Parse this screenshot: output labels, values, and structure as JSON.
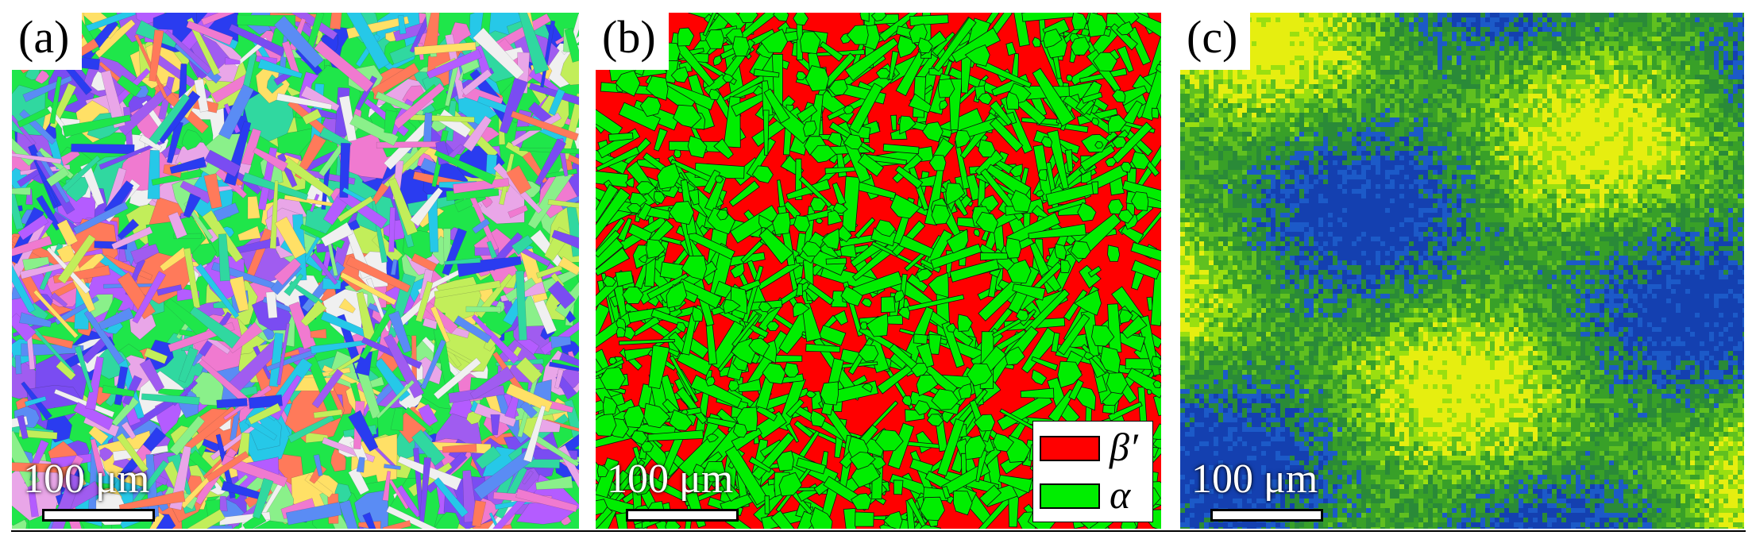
{
  "panels": {
    "a": {
      "letter": "(a)",
      "scalebar": "100 μm",
      "map_type": "orientation-map",
      "palette": [
        "#1fe64a",
        "#2a3cf0",
        "#7a4cf2",
        "#a05cf0",
        "#26c8e8",
        "#5a8cf4",
        "#e9a6e8",
        "#f07ad0",
        "#f0f0f0",
        "#30d8a0",
        "#ff7a5a",
        "#ffe066",
        "#c2ee5a",
        "#8af08a",
        "#b45cff"
      ]
    },
    "b": {
      "letter": "(b)",
      "scalebar": "100 μm",
      "map_type": "phase-map",
      "colors": {
        "beta_prime": "#ff0000",
        "alpha": "#00ee00"
      },
      "legend": [
        {
          "label": "β′",
          "color": "#ff0000"
        },
        {
          "label": "α",
          "color": "#00ee00"
        }
      ]
    },
    "c": {
      "letter": "(c)",
      "scalebar": "100 μm",
      "map_type": "misorientation-map",
      "palette": [
        "#1f7a2e",
        "#2a8a38",
        "#38a028",
        "#60c020",
        "#9adf10",
        "#e6ee10",
        "#1440b0",
        "#1c5ac8"
      ]
    }
  }
}
